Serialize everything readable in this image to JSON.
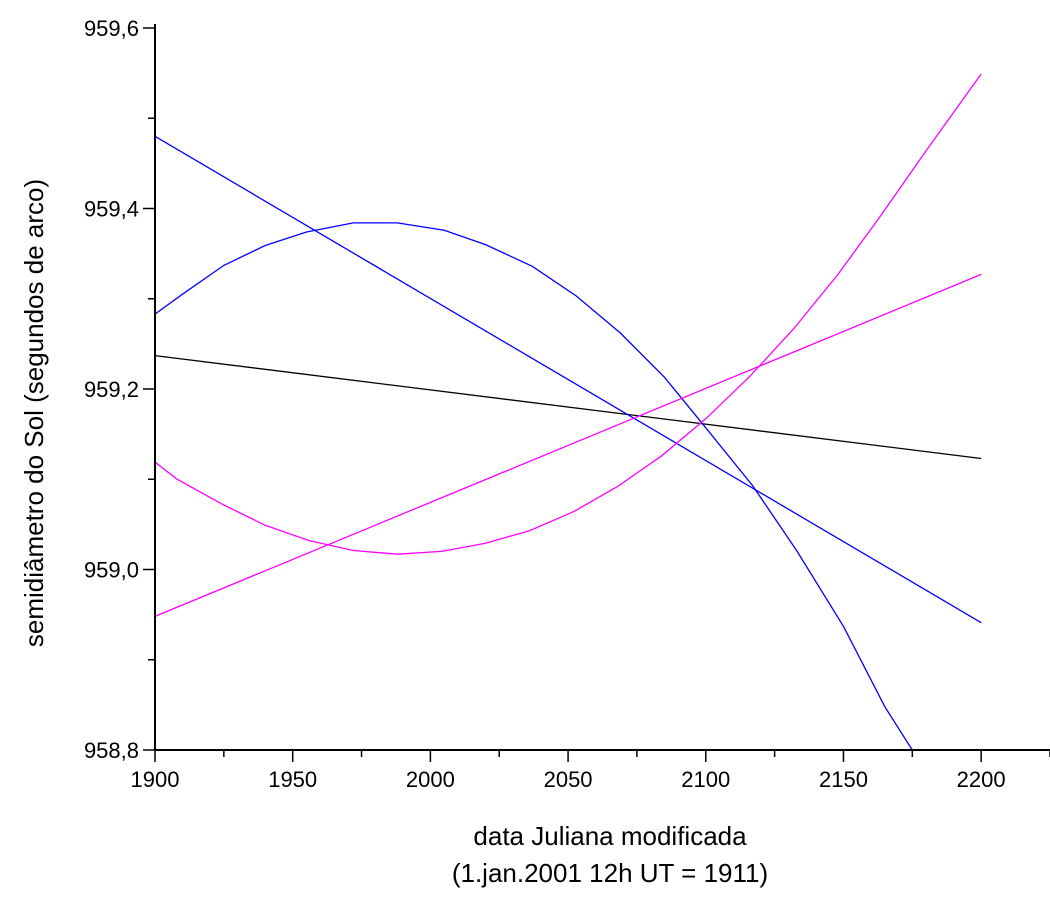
{
  "chart_data": {
    "type": "line",
    "xlabel": "data Juliana modificada",
    "xlabel_line2": "(1.jan.2001 12h UT = 1911)",
    "ylabel": "semidiâmetro do Sol (segundos de arco)",
    "xlim": [
      1900,
      2225
    ],
    "ylim": [
      958.8,
      959.6
    ],
    "x_ticks": [
      1900,
      1950,
      2000,
      2050,
      2100,
      2150,
      2200
    ],
    "x_tick_labels": [
      "1900",
      "1950",
      "2000",
      "2050",
      "2100",
      "2150",
      "2200"
    ],
    "y_ticks": [
      958.8,
      959.0,
      959.2,
      959.4,
      959.6
    ],
    "y_tick_labels": [
      "958,8",
      "959,0",
      "959,2",
      "959,4",
      "959,6"
    ],
    "grid": false,
    "series": [
      {
        "color": "#000000",
        "x": [
          1900,
          2200
        ],
        "y": [
          959.237,
          959.123
        ]
      },
      {
        "color": "#0000ff",
        "x": [
          1900,
          2200
        ],
        "y": [
          959.48,
          958.941
        ]
      },
      {
        "color": "#0000ff",
        "x": [
          1900,
          1910,
          1925,
          1940,
          1955,
          1972,
          1988,
          2005,
          2020,
          2037,
          2053,
          2069,
          2085,
          2100,
          2117,
          2133,
          2150,
          2165,
          2175
        ],
        "y": [
          959.283,
          959.305,
          959.337,
          959.359,
          959.374,
          959.384,
          959.384,
          959.376,
          959.36,
          959.336,
          959.303,
          959.262,
          959.213,
          959.157,
          959.093,
          959.021,
          958.937,
          958.848,
          958.8
        ]
      },
      {
        "color": "#ff00ff",
        "x": [
          1900,
          2200
        ],
        "y": [
          958.948,
          959.327
        ]
      },
      {
        "color": "#ff00ff",
        "x": [
          1900,
          1908,
          1924,
          1940,
          1956,
          1972,
          1988,
          2004,
          2020,
          2036,
          2052,
          2068,
          2084,
          2100,
          2116,
          2132,
          2148,
          2164,
          2180,
          2200
        ],
        "y": [
          959.119,
          959.1,
          959.073,
          959.049,
          959.032,
          959.021,
          959.017,
          959.02,
          959.029,
          959.043,
          959.064,
          959.092,
          959.126,
          959.167,
          959.214,
          959.267,
          959.327,
          959.394,
          959.464,
          959.549
        ]
      }
    ]
  }
}
